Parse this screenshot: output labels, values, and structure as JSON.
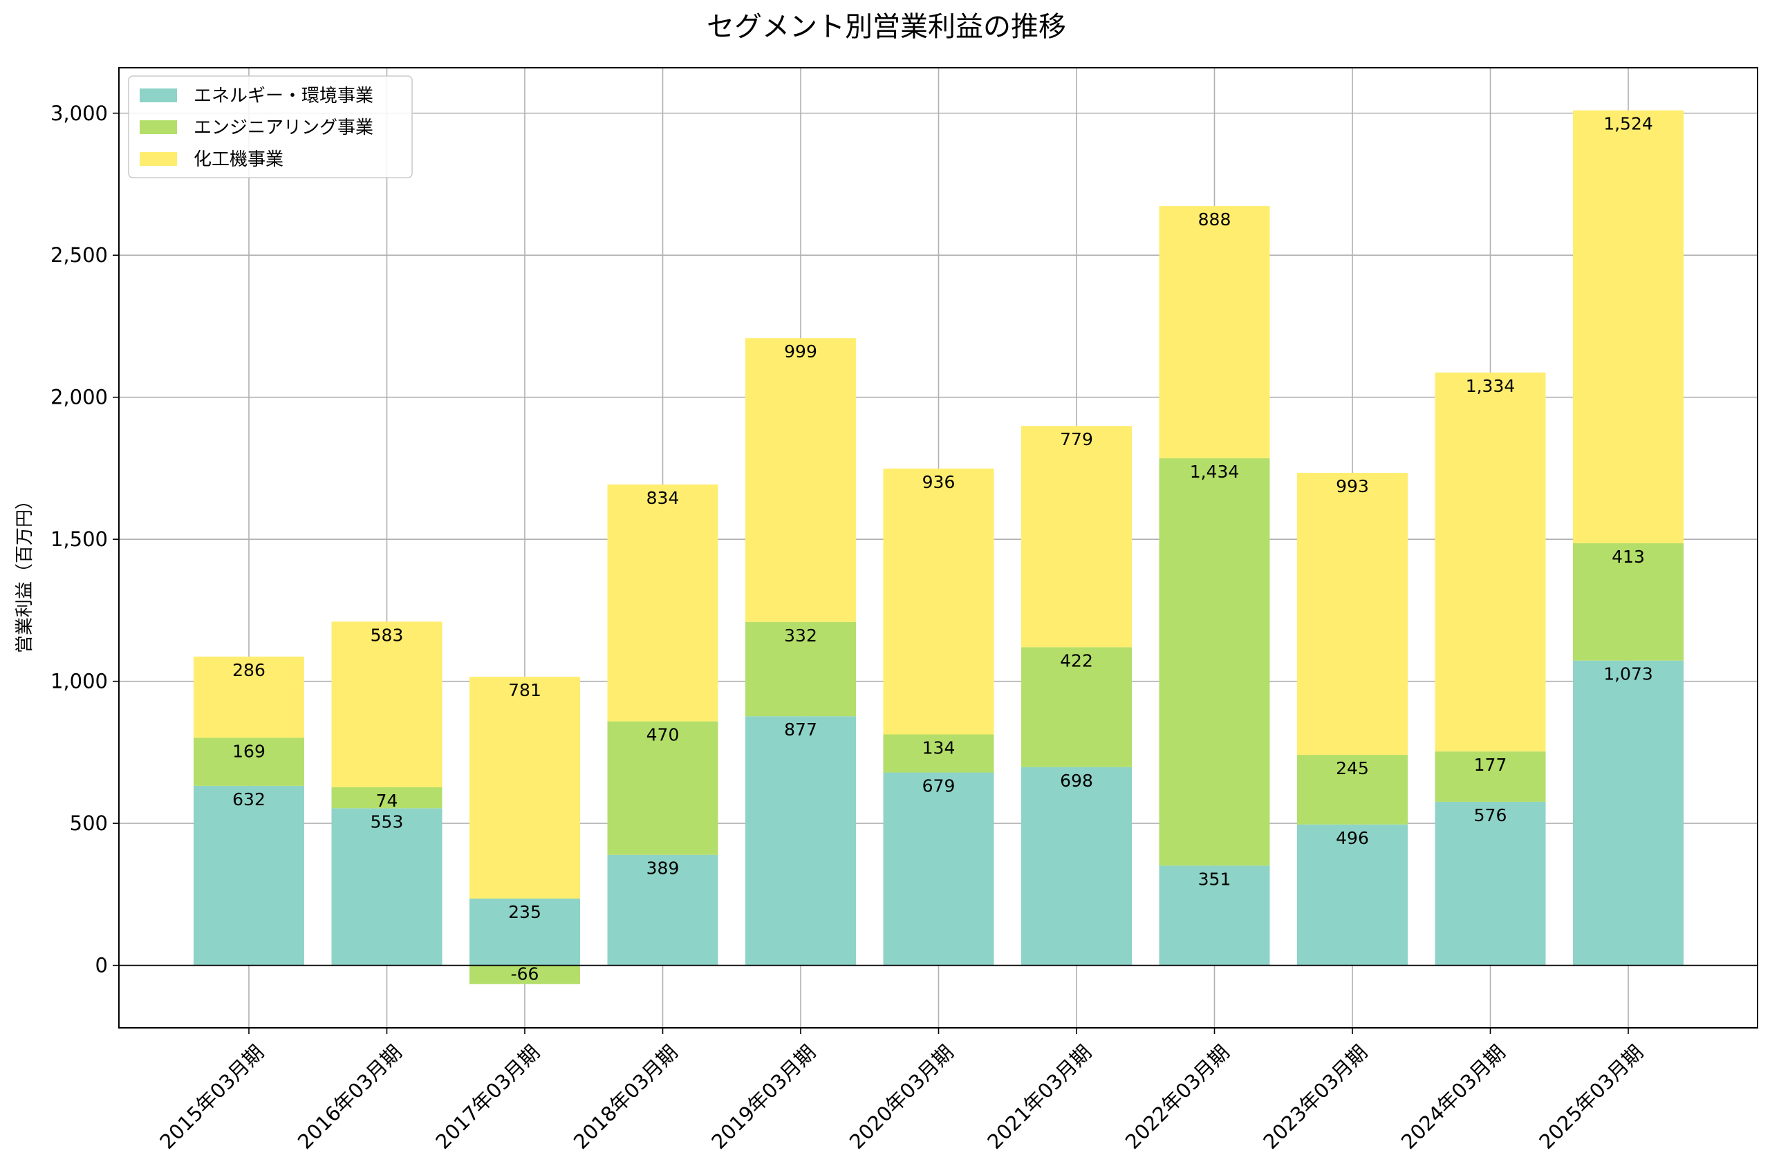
{
  "chart_data": {
    "type": "bar",
    "stacked": true,
    "title": "セグメント別営業利益の推移",
    "xlabel": "",
    "ylabel": "営業利益（百万円）",
    "ylim": [
      -220,
      3160
    ],
    "yticks": [
      0,
      500,
      1000,
      1500,
      2000,
      2500,
      3000
    ],
    "ytick_labels": [
      "0",
      "500",
      "1,000",
      "1,500",
      "2,000",
      "2,500",
      "3,000"
    ],
    "grid": true,
    "legend_position": "top-left",
    "categories": [
      "2015年03月期",
      "2016年03月期",
      "2017年03月期",
      "2018年03月期",
      "2019年03月期",
      "2020年03月期",
      "2021年03月期",
      "2022年03月期",
      "2023年03月期",
      "2024年03月期",
      "2025年03月期"
    ],
    "series": [
      {
        "name": "エネルギー・環境事業",
        "color": "#8dd3c7",
        "values": [
          632,
          553,
          235,
          389,
          877,
          679,
          698,
          351,
          496,
          576,
          1073
        ],
        "labels": [
          "632",
          "553",
          "235",
          "389",
          "877",
          "679",
          "698",
          "351",
          "496",
          "576",
          "1,073"
        ]
      },
      {
        "name": "エンジニアリング事業",
        "color": "#b3de69",
        "values": [
          169,
          74,
          -66,
          470,
          332,
          134,
          422,
          1434,
          245,
          177,
          413
        ],
        "labels": [
          "169",
          "74",
          "-66",
          "470",
          "332",
          "134",
          "422",
          "1,434",
          "245",
          "177",
          "413"
        ]
      },
      {
        "name": "化工機事業",
        "color": "#ffed6f",
        "values": [
          286,
          583,
          781,
          834,
          999,
          936,
          779,
          888,
          993,
          1334,
          1524
        ],
        "labels": [
          "286",
          "583",
          "781",
          "834",
          "999",
          "936",
          "779",
          "888",
          "993",
          "1,334",
          "1,524"
        ]
      }
    ]
  }
}
